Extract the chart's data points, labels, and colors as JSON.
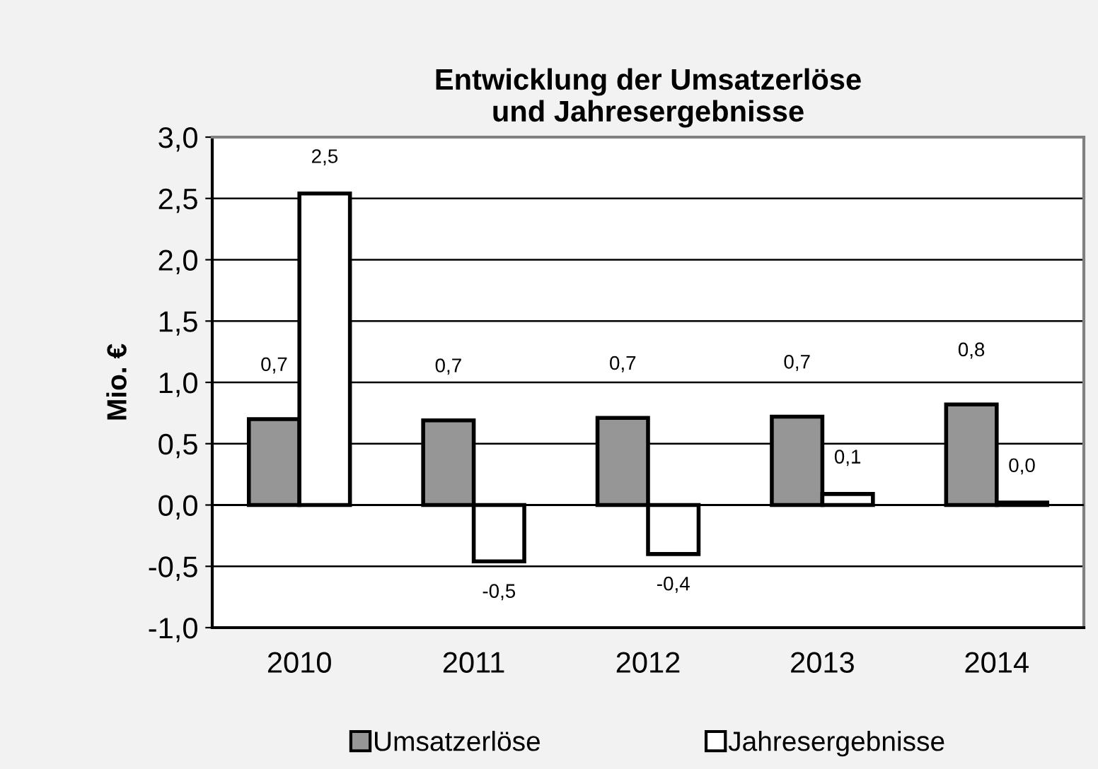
{
  "chart_data": {
    "type": "bar",
    "title": "Entwicklung der Umsatzerlöse\nund Jahresergebnisse",
    "ylabel": "Mio. €",
    "categories": [
      "2010",
      "2011",
      "2012",
      "2013",
      "2014"
    ],
    "series": [
      {
        "name": "Umsatzerlöse",
        "color": "#969696",
        "values": [
          0.7,
          0.69,
          0.71,
          0.72,
          0.82
        ],
        "value_labels": [
          "0,7",
          "0,7",
          "0,7",
          "0,7",
          "0,8"
        ]
      },
      {
        "name": "Jahresergebnisse",
        "color": "#ffffff",
        "values": [
          2.54,
          -0.46,
          -0.4,
          0.09,
          0.02
        ],
        "value_labels": [
          "2,5",
          "-0,5",
          "-0,4",
          "0,1",
          "0,0"
        ]
      }
    ],
    "ylim": [
      -1.0,
      3.0
    ],
    "yticks": [
      {
        "value": -1.0,
        "label": "-1,0"
      },
      {
        "value": -0.5,
        "label": "-0,5"
      },
      {
        "value": 0.0,
        "label": "0,0"
      },
      {
        "value": 0.5,
        "label": "0,5"
      },
      {
        "value": 1.0,
        "label": "1,0"
      },
      {
        "value": 1.5,
        "label": "1,5"
      },
      {
        "value": 2.0,
        "label": "2,0"
      },
      {
        "value": 2.5,
        "label": "2,5"
      },
      {
        "value": 3.0,
        "label": "3,0"
      }
    ],
    "grid": "y",
    "legend": "bottom"
  }
}
